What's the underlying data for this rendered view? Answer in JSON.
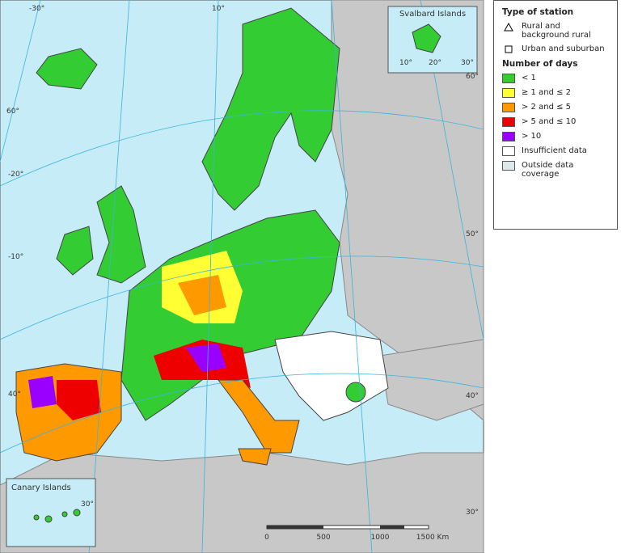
{
  "map": {
    "insets": [
      {
        "label": "Svalbard Islands"
      },
      {
        "label": "Canary Islands"
      }
    ],
    "graticule_labels": [
      "-30°",
      "10°",
      "60°",
      "-20°",
      "-10°",
      "60°",
      "50°",
      "40°",
      "30°",
      "40°",
      "10°",
      "20°",
      "30°",
      "30°"
    ],
    "scale_bar": [
      "0",
      "500",
      "1000",
      "1500 Km"
    ]
  },
  "legend": {
    "station_title": "Type of station",
    "stations": [
      "Rural and background rural",
      "Urban and suburban"
    ],
    "days_title": "Number of days",
    "classes": [
      {
        "label": "< 1",
        "color": "#33cc33"
      },
      {
        "label": "≥ 1 and ≤ 2",
        "color": "#ffff33"
      },
      {
        "label": "> 2 and ≤ 5",
        "color": "#ff9900"
      },
      {
        "label": "> 5 and ≤ 10",
        "color": "#ee0000"
      },
      {
        "label": "> 10",
        "color": "#9900ff"
      },
      {
        "label": "Insufficient data",
        "color": "#ffffff"
      },
      {
        "label": "Outside data coverage",
        "color": "#dde8ea"
      }
    ]
  }
}
